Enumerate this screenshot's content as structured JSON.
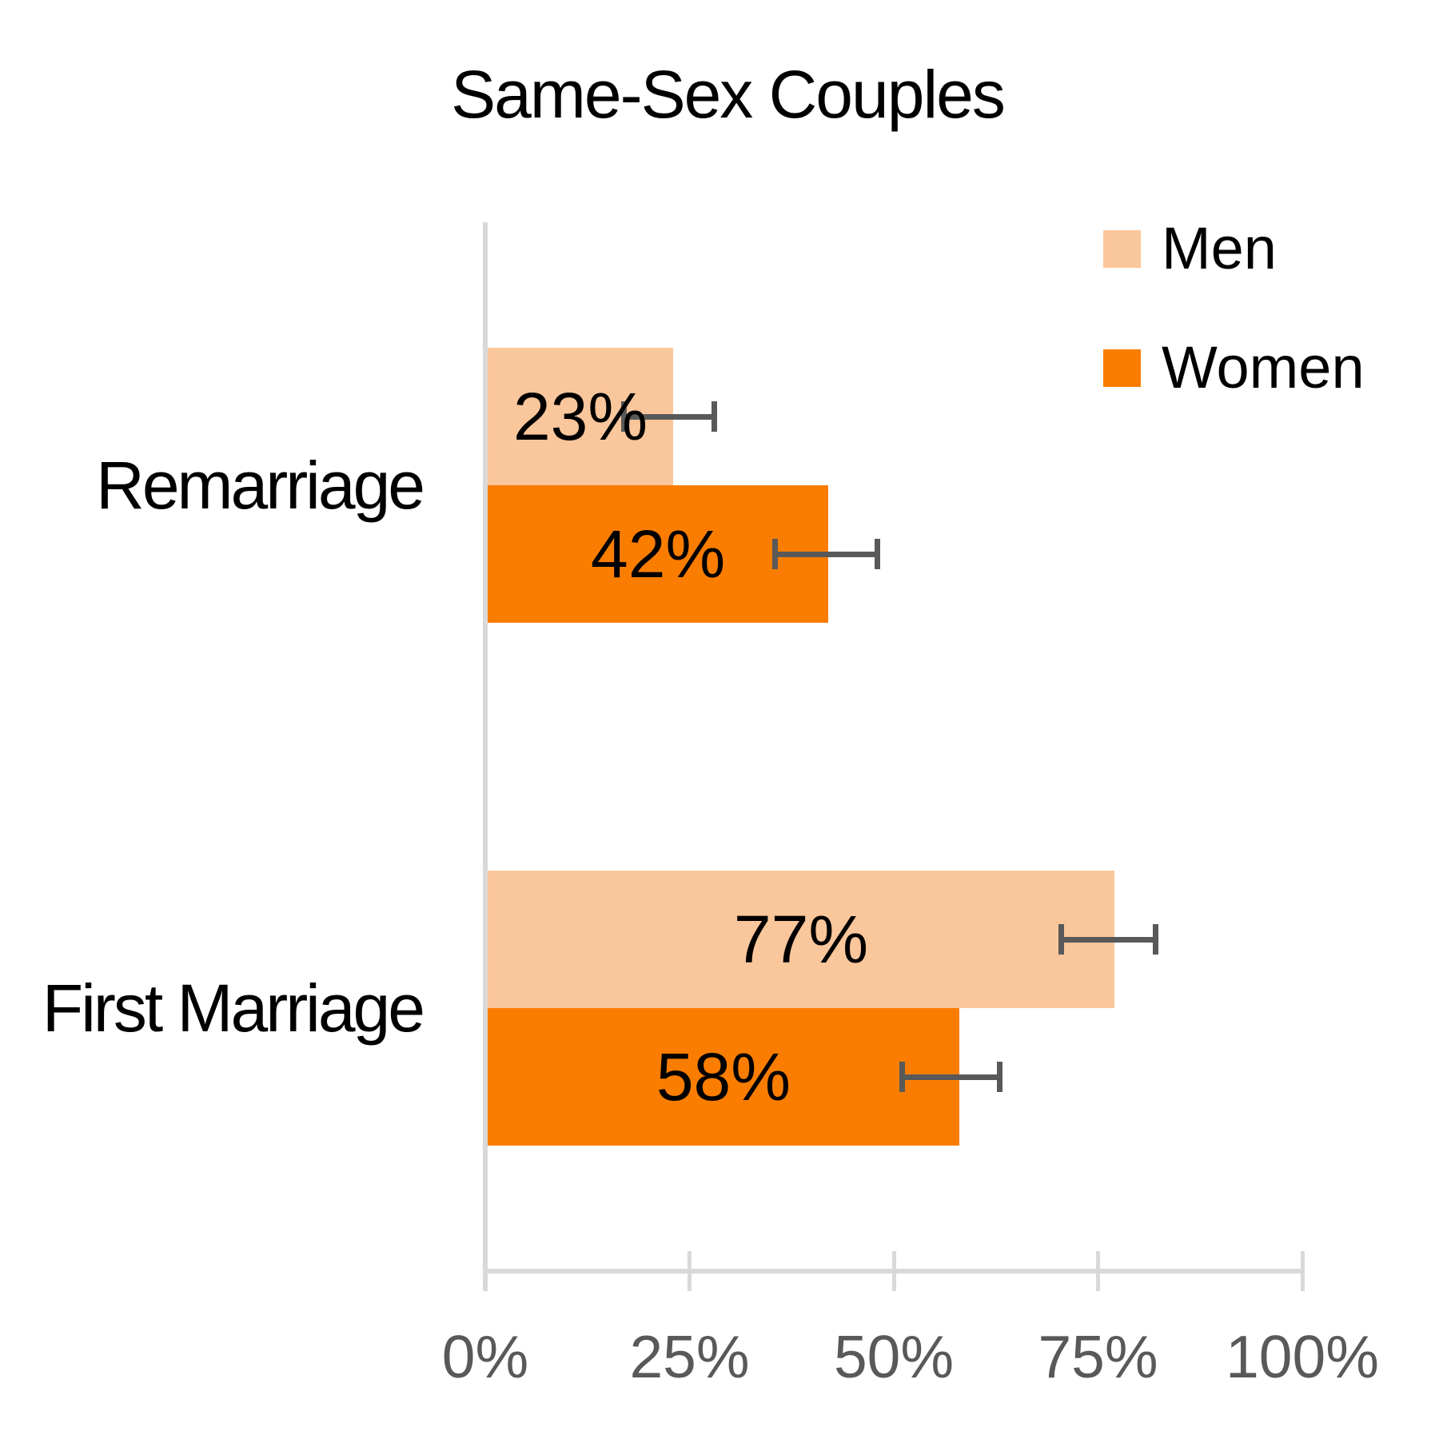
{
  "chart_data": {
    "type": "bar",
    "orientation": "horizontal",
    "title": "Same-Sex Couples",
    "categories": [
      "Remarriage",
      "First Marriage"
    ],
    "series": [
      {
        "name": "Men",
        "color": "#FAC69B",
        "values": [
          23,
          77
        ],
        "labels": [
          "23%",
          "77%"
        ],
        "error_low": [
          17,
          70.5
        ],
        "error_high": [
          28,
          82
        ]
      },
      {
        "name": "Women",
        "color": "#FA7D00",
        "values": [
          42,
          58
        ],
        "labels": [
          "42%",
          "58%"
        ],
        "error_low": [
          35.5,
          51
        ],
        "error_high": [
          48,
          63
        ]
      }
    ],
    "xlim": [
      0,
      100
    ],
    "x_ticks": [
      {
        "value": 0,
        "label": "0%"
      },
      {
        "value": 25,
        "label": "25%"
      },
      {
        "value": 50,
        "label": "50%"
      },
      {
        "value": 75,
        "label": "75%"
      },
      {
        "value": 100,
        "label": "100%"
      }
    ],
    "legend": {
      "position": "top-right",
      "entries": [
        "Men",
        "Women"
      ]
    },
    "error_bars": true,
    "grid": false,
    "colors": {
      "axis": "#D9D9D9",
      "tick_label": "#595959",
      "error_bar": "#595959",
      "text": "#000000",
      "background": "#FFFFFF"
    }
  }
}
